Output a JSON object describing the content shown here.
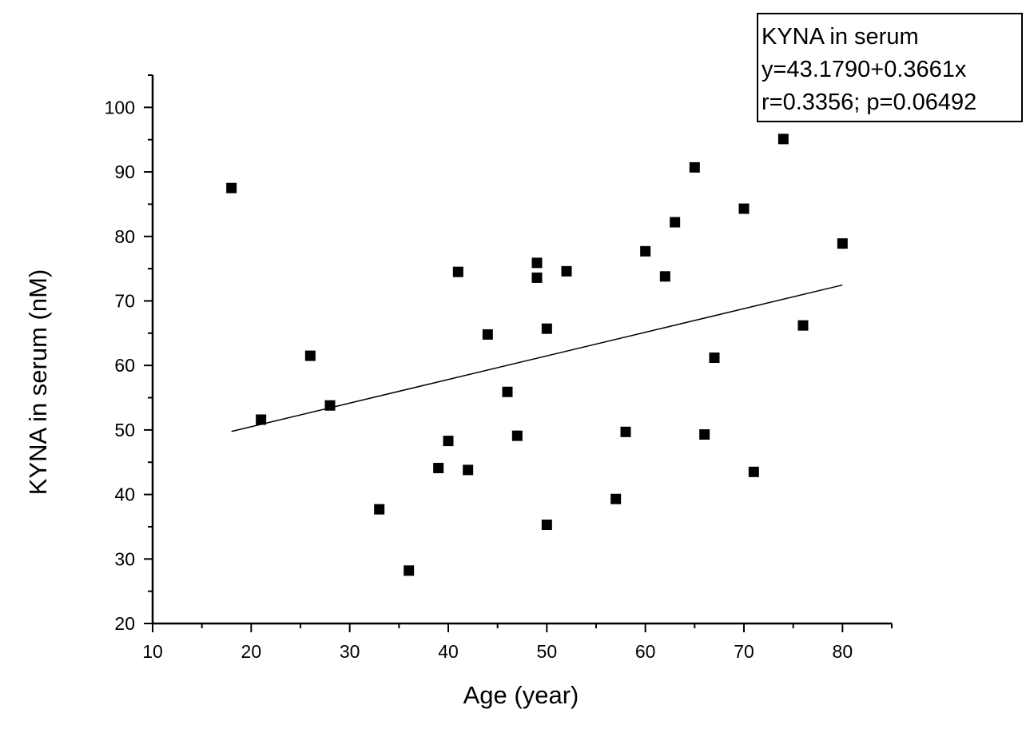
{
  "chart_data": {
    "type": "scatter",
    "xlabel": "Age (year)",
    "ylabel": "KYNA in serum (nM)",
    "xlim": [
      10,
      85
    ],
    "ylim": [
      20,
      105
    ],
    "xticks": [
      "10",
      "20",
      "30",
      "40",
      "50",
      "60",
      "70",
      "80"
    ],
    "yticks": [
      "20",
      "30",
      "40",
      "50",
      "60",
      "70",
      "80",
      "90",
      "100"
    ],
    "grid": false,
    "legend": {
      "placement": "top-right",
      "lines": [
        "KYNA in serum",
        "y=43.1790+0.3661x",
        "r=0.3356; p=0.06492"
      ]
    },
    "series": [
      {
        "marker": "square",
        "color": "#000000",
        "points": [
          {
            "x": 18,
            "y": 87.5
          },
          {
            "x": 21,
            "y": 51.6
          },
          {
            "x": 26,
            "y": 61.5
          },
          {
            "x": 28,
            "y": 53.8
          },
          {
            "x": 33,
            "y": 37.7
          },
          {
            "x": 36,
            "y": 28.2
          },
          {
            "x": 39,
            "y": 44.1
          },
          {
            "x": 40,
            "y": 48.3
          },
          {
            "x": 41,
            "y": 74.5
          },
          {
            "x": 42,
            "y": 43.8
          },
          {
            "x": 44,
            "y": 64.8
          },
          {
            "x": 46,
            "y": 55.9
          },
          {
            "x": 47,
            "y": 49.1
          },
          {
            "x": 49,
            "y": 75.9
          },
          {
            "x": 49,
            "y": 73.6
          },
          {
            "x": 50,
            "y": 65.7
          },
          {
            "x": 50,
            "y": 35.3
          },
          {
            "x": 52,
            "y": 74.6
          },
          {
            "x": 57,
            "y": 39.3
          },
          {
            "x": 58,
            "y": 49.7
          },
          {
            "x": 60,
            "y": 77.7
          },
          {
            "x": 62,
            "y": 73.8
          },
          {
            "x": 63,
            "y": 82.2
          },
          {
            "x": 65,
            "y": 90.7
          },
          {
            "x": 66,
            "y": 49.3
          },
          {
            "x": 67,
            "y": 61.2
          },
          {
            "x": 70,
            "y": 84.3
          },
          {
            "x": 71,
            "y": 43.5
          },
          {
            "x": 74,
            "y": 95.1
          },
          {
            "x": 76,
            "y": 66.2
          },
          {
            "x": 80,
            "y": 78.9
          }
        ]
      }
    ],
    "fit_line": {
      "intercept": 43.179,
      "slope": 0.3661,
      "x_range": [
        18,
        80
      ],
      "color": "#000000"
    }
  }
}
